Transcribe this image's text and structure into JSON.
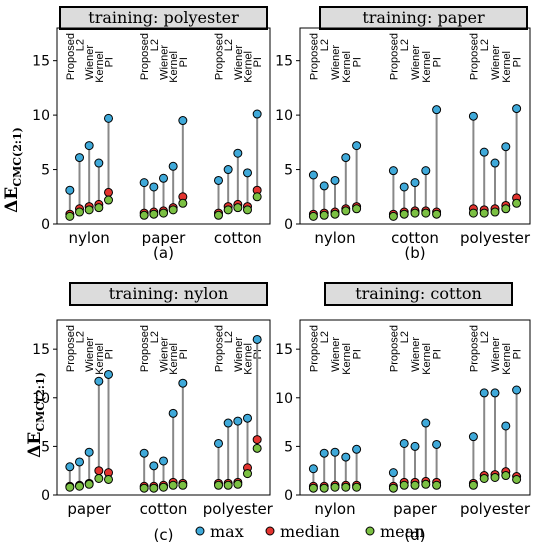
{
  "figure": {
    "ylabel_main": "ΔE",
    "ylabel_sub": "CMC(2:1)",
    "legend": [
      {
        "label": "max",
        "color": "#3fa9d9"
      },
      {
        "label": "median",
        "color": "#e3342f"
      },
      {
        "label": "mean",
        "color": "#7bc043"
      }
    ],
    "stem_color": "#888888"
  },
  "chart_data": [
    {
      "type": "scatter",
      "title": "training: polyester",
      "sublabel": "(a)",
      "methods": [
        "Proposed",
        "L2",
        "Wiener",
        "Kernel",
        "PI"
      ],
      "ylim": [
        0,
        18
      ],
      "yticks": [
        0,
        5,
        10,
        15
      ],
      "groups": [
        {
          "name": "nylon",
          "max": [
            3.1,
            6.1,
            7.2,
            5.6,
            9.7
          ],
          "median": [
            0.9,
            1.4,
            1.6,
            1.8,
            2.9
          ],
          "mean": [
            0.7,
            1.1,
            1.3,
            1.5,
            2.2
          ]
        },
        {
          "name": "paper",
          "max": [
            3.8,
            3.4,
            4.2,
            5.3,
            9.5
          ],
          "median": [
            1.0,
            1.1,
            1.2,
            1.5,
            2.5
          ],
          "mean": [
            0.8,
            0.9,
            1.0,
            1.3,
            1.9
          ]
        },
        {
          "name": "cotton",
          "max": [
            4.0,
            5.0,
            6.5,
            4.7,
            10.1
          ],
          "median": [
            1.0,
            1.6,
            1.8,
            1.6,
            3.1
          ],
          "mean": [
            0.8,
            1.3,
            1.5,
            1.3,
            2.5
          ]
        }
      ]
    },
    {
      "type": "scatter",
      "title": "training: paper",
      "sublabel": "(b)",
      "methods": [
        "Proposed",
        "L2",
        "Wiener",
        "Kernel",
        "PI"
      ],
      "ylim": [
        0,
        18
      ],
      "yticks": [
        0,
        5,
        10,
        15
      ],
      "groups": [
        {
          "name": "nylon",
          "max": [
            4.5,
            3.5,
            4.0,
            6.1,
            7.2
          ],
          "median": [
            0.9,
            1.0,
            1.1,
            1.4,
            1.6
          ],
          "mean": [
            0.7,
            0.8,
            0.9,
            1.2,
            1.4
          ]
        },
        {
          "name": "cotton",
          "max": [
            4.9,
            3.4,
            3.8,
            4.9,
            10.5
          ],
          "median": [
            0.9,
            1.1,
            1.2,
            1.2,
            1.1
          ],
          "mean": [
            0.7,
            0.9,
            1.0,
            1.0,
            0.9
          ]
        },
        {
          "name": "polyester",
          "max": [
            9.9,
            6.6,
            5.6,
            7.1,
            10.6
          ],
          "median": [
            1.4,
            1.3,
            1.4,
            1.7,
            2.4
          ],
          "mean": [
            1.0,
            1.0,
            1.1,
            1.4,
            1.9
          ]
        }
      ]
    },
    {
      "type": "scatter",
      "title": "training: nylon",
      "sublabel": "(c)",
      "methods": [
        "Proposed",
        "L2",
        "Wiener",
        "Kernel",
        "PI"
      ],
      "ylim": [
        0,
        18
      ],
      "yticks": [
        0,
        5,
        10,
        15
      ],
      "groups": [
        {
          "name": "paper",
          "max": [
            2.9,
            3.4,
            4.4,
            11.7,
            12.4
          ],
          "median": [
            0.9,
            1.0,
            1.2,
            2.5,
            2.3
          ],
          "mean": [
            0.8,
            0.9,
            1.1,
            1.7,
            1.6
          ]
        },
        {
          "name": "cotton",
          "max": [
            4.3,
            3.0,
            3.5,
            8.4,
            11.5
          ],
          "median": [
            0.9,
            0.9,
            1.0,
            1.3,
            1.2
          ],
          "mean": [
            0.7,
            0.7,
            0.8,
            1.0,
            1.0
          ]
        },
        {
          "name": "polyester",
          "max": [
            5.3,
            7.4,
            7.6,
            7.9,
            16.0
          ],
          "median": [
            1.2,
            1.2,
            1.3,
            2.8,
            5.7
          ],
          "mean": [
            1.0,
            1.0,
            1.1,
            2.2,
            4.8
          ]
        }
      ]
    },
    {
      "type": "scatter",
      "title": "training: cotton",
      "sublabel": "(d)",
      "methods": [
        "Proposed",
        "L2",
        "Wiener",
        "Kernel",
        "PI"
      ],
      "ylim": [
        0,
        18
      ],
      "yticks": [
        0,
        5,
        10,
        15
      ],
      "groups": [
        {
          "name": "nylon",
          "max": [
            2.7,
            4.3,
            4.4,
            3.9,
            4.7
          ],
          "median": [
            0.9,
            0.9,
            1.0,
            1.0,
            1.0
          ],
          "mean": [
            0.7,
            0.7,
            0.8,
            0.8,
            0.8
          ]
        },
        {
          "name": "paper",
          "max": [
            2.3,
            5.3,
            5.0,
            7.4,
            5.2
          ],
          "median": [
            0.9,
            1.3,
            1.3,
            1.4,
            1.3
          ],
          "mean": [
            0.7,
            1.0,
            1.0,
            1.1,
            1.0
          ]
        },
        {
          "name": "polyester",
          "max": [
            6.0,
            10.5,
            10.5,
            7.1,
            10.8
          ],
          "median": [
            1.2,
            2.0,
            2.1,
            2.4,
            1.9
          ],
          "mean": [
            1.0,
            1.7,
            1.8,
            2.0,
            1.6
          ]
        }
      ]
    }
  ]
}
